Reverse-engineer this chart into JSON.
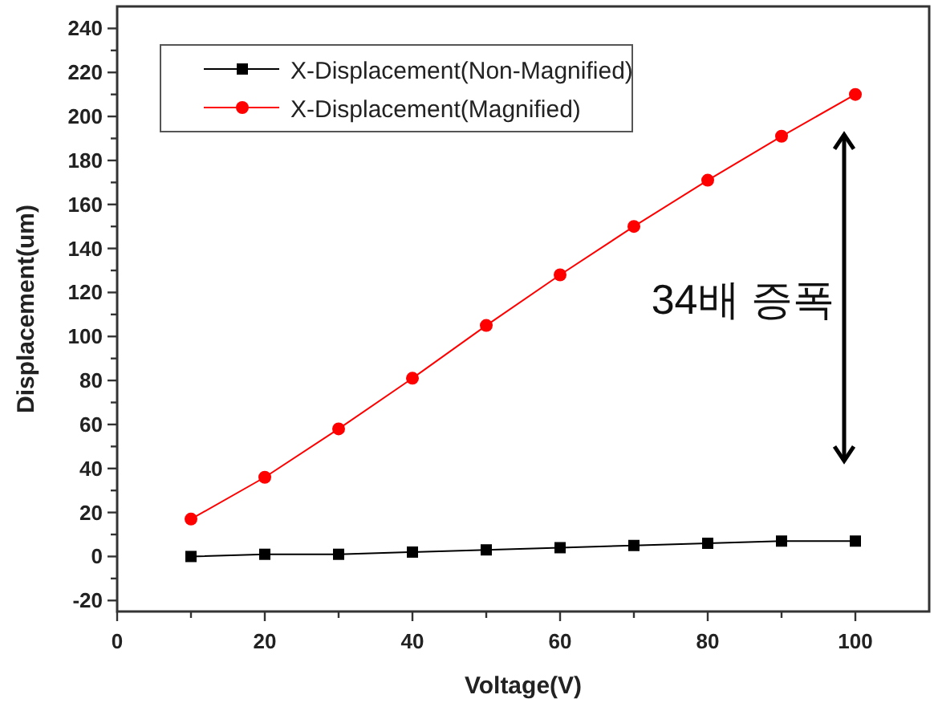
{
  "chart_data": {
    "type": "line",
    "xlabel": "Voltage(V)",
    "ylabel": "Displacement(um)",
    "x": [
      10,
      20,
      30,
      40,
      50,
      60,
      70,
      80,
      90,
      100
    ],
    "series": [
      {
        "name": "X-Displacement(Non-Magnified)",
        "color": "#000000",
        "marker": "square",
        "values": [
          0,
          1,
          1,
          2,
          3,
          4,
          5,
          6,
          7,
          7
        ]
      },
      {
        "name": "X-Displacement(Magnified)",
        "color": "#ff0000",
        "marker": "circle",
        "values": [
          17,
          36,
          58,
          81,
          105,
          128,
          150,
          171,
          191,
          210
        ]
      }
    ],
    "xlim": [
      0,
      110
    ],
    "ylim": [
      -25,
      250
    ],
    "xticks": [
      0,
      {
        "value": 10,
        "label": null
      },
      20,
      {
        "value": 30,
        "label": null
      },
      40,
      {
        "value": 50,
        "label": null
      },
      60,
      {
        "value": 70,
        "label": null
      },
      80,
      {
        "value": 90,
        "label": null
      },
      100
    ],
    "yticks": [
      -20,
      {
        "value": -10,
        "label": null
      },
      0,
      {
        "value": 10,
        "label": null
      },
      20,
      {
        "value": 30,
        "label": null
      },
      40,
      {
        "value": 50,
        "label": null
      },
      60,
      {
        "value": 70,
        "label": null
      },
      80,
      {
        "value": 90,
        "label": null
      },
      100,
      {
        "value": 110,
        "label": null
      },
      120,
      {
        "value": 130,
        "label": null
      },
      140,
      {
        "value": 150,
        "label": null
      },
      160,
      {
        "value": 170,
        "label": null
      },
      180,
      {
        "value": 190,
        "label": null
      },
      200,
      {
        "value": 210,
        "label": null
      },
      220,
      {
        "value": 230,
        "label": null
      },
      240
    ],
    "annotations": [
      "34배 증폭"
    ],
    "legend": "top left",
    "grid": false,
    "line_style": "solid"
  }
}
